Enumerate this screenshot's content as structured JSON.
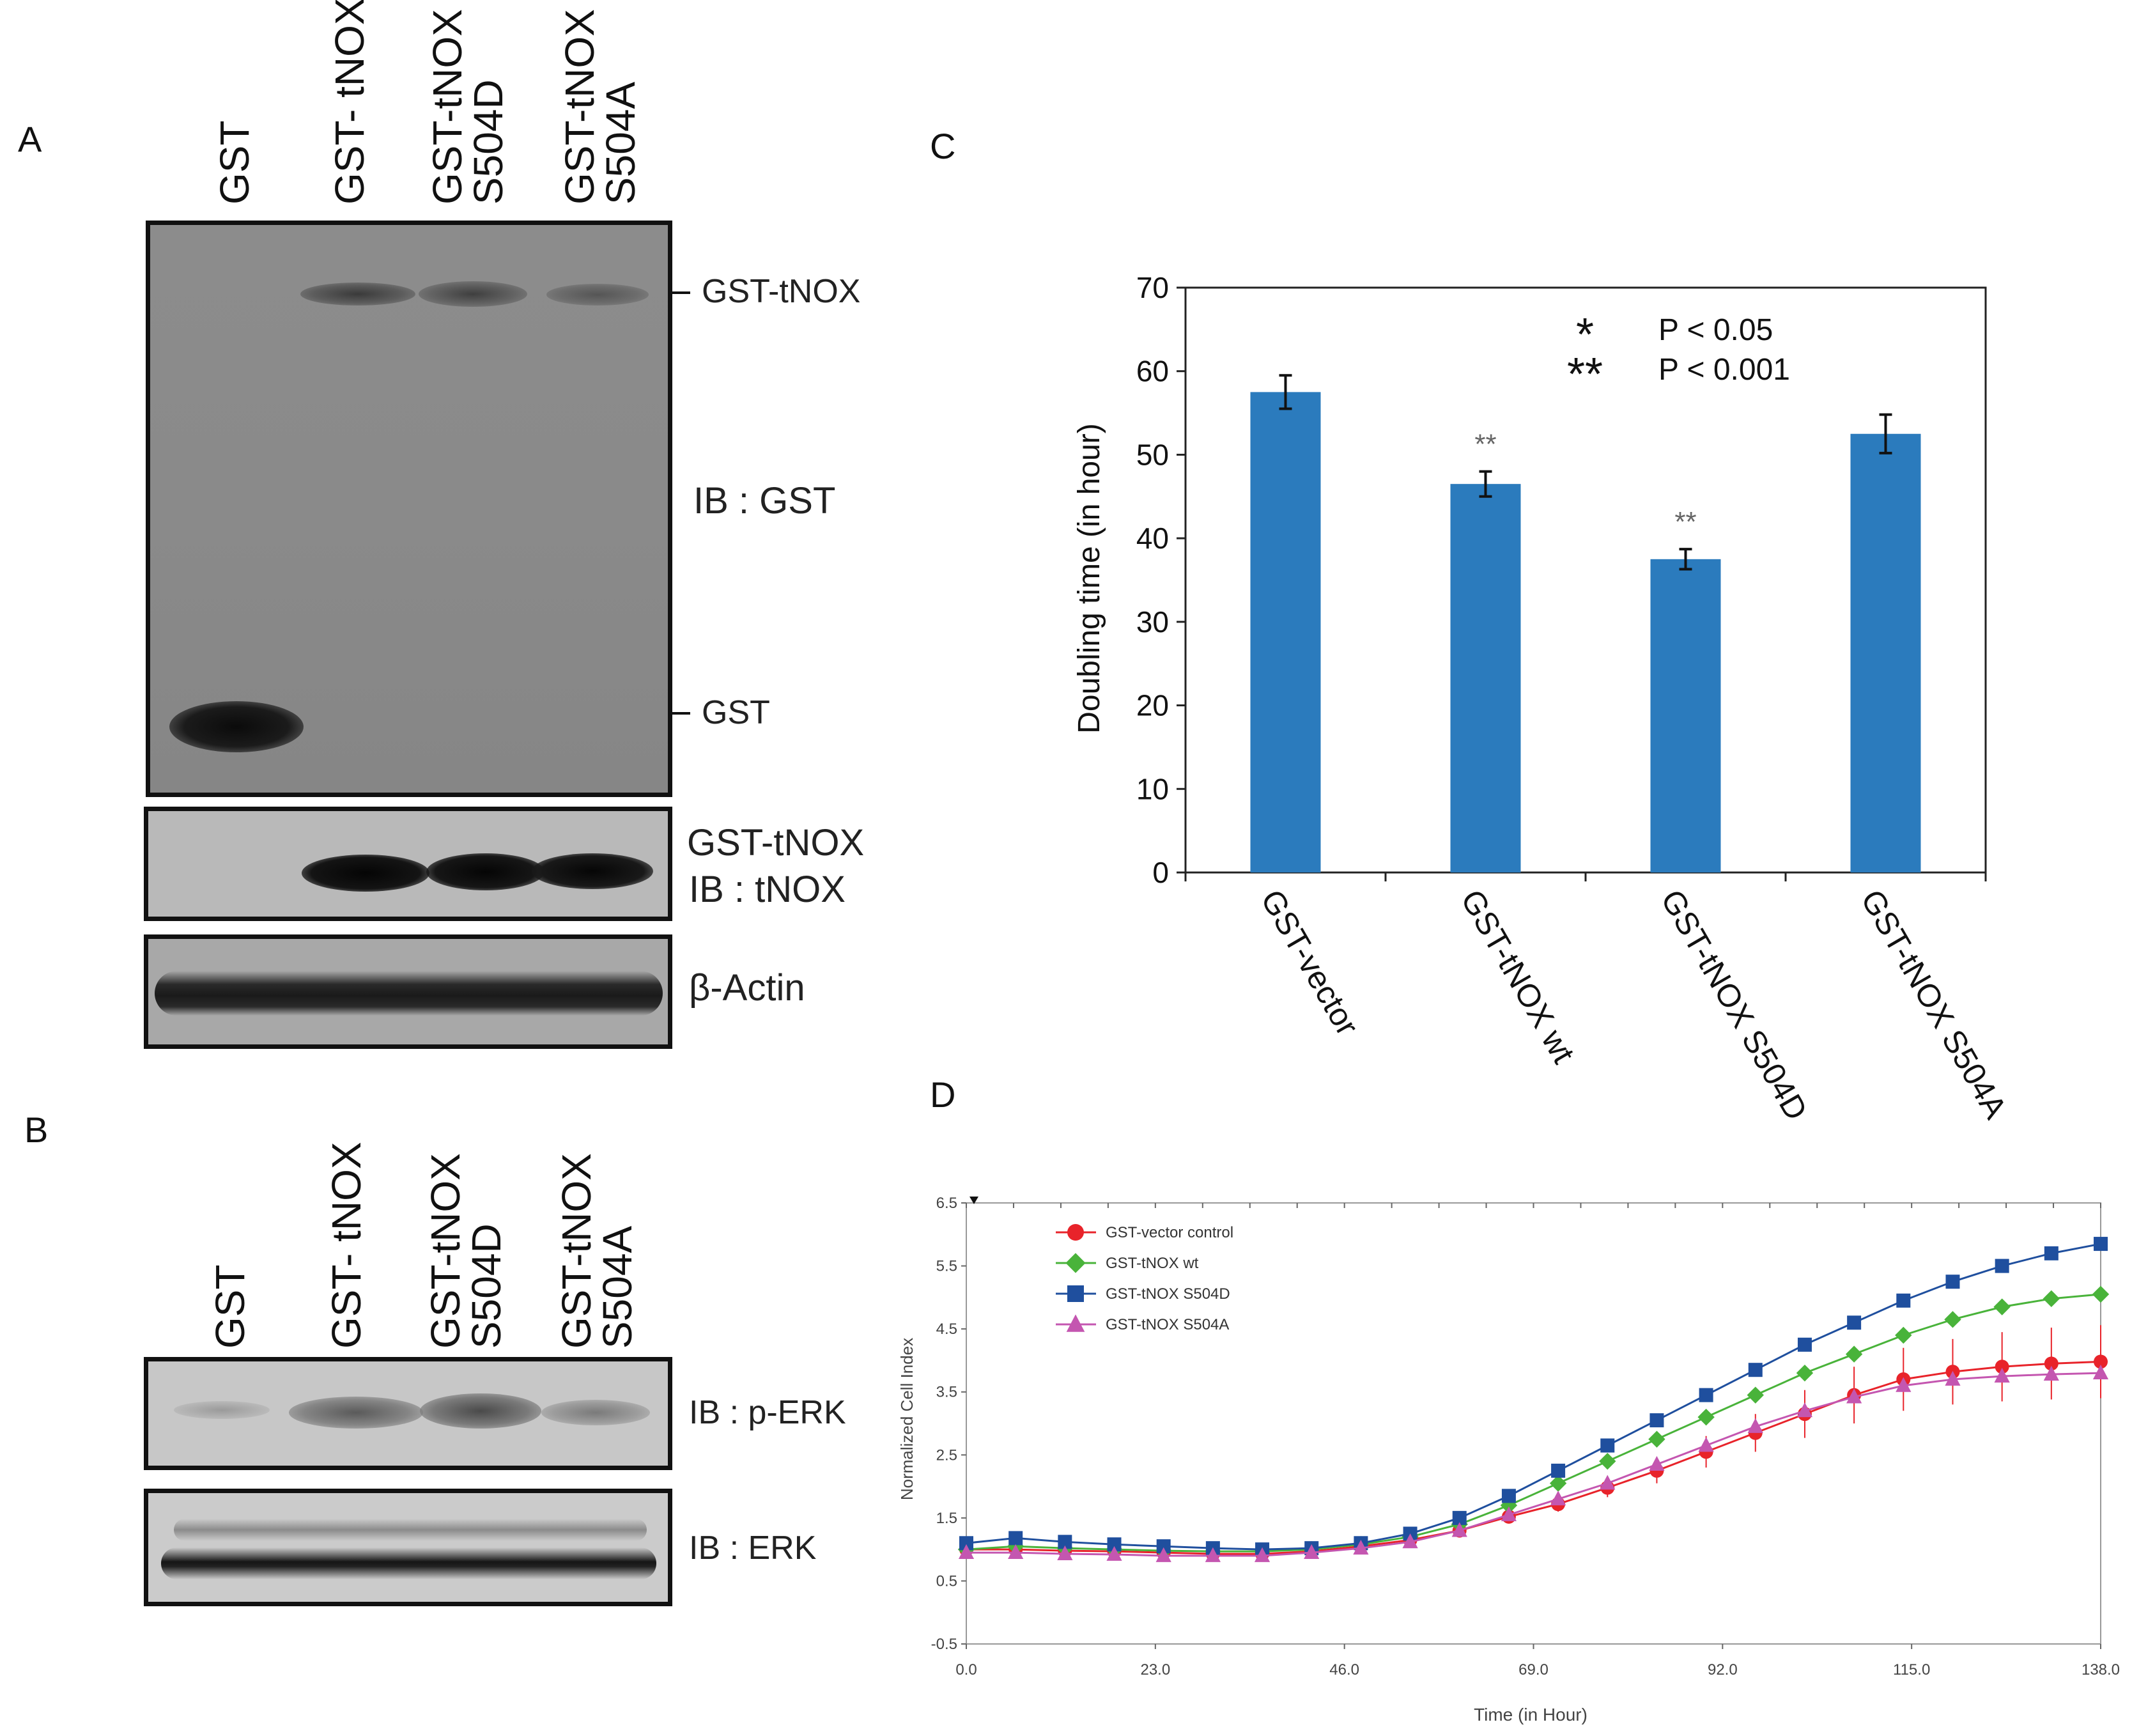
{
  "panels": {
    "a": "A",
    "b": "B",
    "c": "C",
    "d": "D"
  },
  "panel_a": {
    "lanes": [
      "GST",
      "GST- tNOX",
      "GST-tNOX\nS504D",
      "GST-tNOX\nS504A"
    ],
    "markers": {
      "top": "GST-tNOX",
      "bottom": "GST"
    },
    "main_ib": "IB : GST",
    "mid_label_1": "GST-tNOX",
    "mid_label_2": "IB : tNOX",
    "actin_label": "β-Actin"
  },
  "panel_b": {
    "lanes": [
      "GST",
      "GST- tNOX",
      "GST-tNOX\nS504D",
      "GST-tNOX\nS504A"
    ],
    "perk_label": "IB : p-ERK",
    "erk_label": "IB : ERK"
  },
  "chart_data": [
    {
      "type": "bar",
      "title": "",
      "categories": [
        "GST-vector",
        "GST-tNOX wt",
        "GST-tNOX S504D",
        "GST-tNOX S504A"
      ],
      "values": [
        57.5,
        46.5,
        37.5,
        52.5
      ],
      "errors": [
        2,
        1.5,
        1.2,
        2.3
      ],
      "significance": [
        "",
        "**",
        "**",
        ""
      ],
      "ylabel": "Doubling time (in hour)",
      "xlabel": "",
      "ylim": [
        0,
        70
      ],
      "yticks": [
        0,
        10,
        20,
        30,
        40,
        50,
        60,
        70
      ],
      "legend_items": [
        {
          "symbol": "*",
          "text": "P < 0.05"
        },
        {
          "symbol": "**",
          "text": "P < 0.001"
        }
      ],
      "color": "#2b7bbd"
    },
    {
      "type": "line",
      "title": "",
      "xlabel": "Time (in Hour)",
      "ylabel": "Normalized Cell Index",
      "xlim": [
        0,
        138
      ],
      "ylim": [
        -0.5,
        6.5
      ],
      "xticks": [
        "0.0",
        "23.0",
        "46.0",
        "69.0",
        "92.0",
        "115.0",
        "138.0"
      ],
      "yticks": [
        "-0.5",
        "0.5",
        "1.5",
        "2.5",
        "3.5",
        "4.5",
        "5.5",
        "6.5"
      ],
      "x": [
        0,
        6,
        12,
        18,
        24,
        30,
        36,
        42,
        48,
        54,
        60,
        66,
        72,
        78,
        84,
        90,
        96,
        102,
        108,
        114,
        120,
        126,
        132,
        138
      ],
      "series": [
        {
          "name": "GST-vector control",
          "color": "#e8232a",
          "marker": "circle",
          "values": [
            1.0,
            1.0,
            0.98,
            0.97,
            0.95,
            0.93,
            0.93,
            0.97,
            1.05,
            1.15,
            1.3,
            1.52,
            1.72,
            1.98,
            2.25,
            2.55,
            2.85,
            3.15,
            3.45,
            3.7,
            3.82,
            3.9,
            3.95,
            3.98
          ],
          "errors": [
            0.05,
            0.05,
            0.05,
            0.05,
            0.05,
            0.05,
            0.05,
            0.05,
            0.06,
            0.07,
            0.08,
            0.1,
            0.12,
            0.15,
            0.2,
            0.25,
            0.3,
            0.38,
            0.45,
            0.5,
            0.52,
            0.55,
            0.57,
            0.58
          ]
        },
        {
          "name": "GST-tNOX wt",
          "color": "#49b33a",
          "marker": "diamond",
          "values": [
            1.0,
            1.05,
            1.02,
            1.0,
            0.98,
            0.97,
            0.97,
            1.0,
            1.08,
            1.2,
            1.4,
            1.7,
            2.05,
            2.4,
            2.75,
            3.1,
            3.45,
            3.8,
            4.1,
            4.4,
            4.65,
            4.85,
            4.98,
            5.05
          ]
        },
        {
          "name": "GST-tNOX S504D",
          "color": "#1f4f9e",
          "marker": "square",
          "values": [
            1.1,
            1.18,
            1.12,
            1.08,
            1.05,
            1.02,
            1.0,
            1.02,
            1.1,
            1.25,
            1.5,
            1.85,
            2.25,
            2.65,
            3.05,
            3.45,
            3.85,
            4.25,
            4.6,
            4.95,
            5.25,
            5.5,
            5.7,
            5.85
          ]
        },
        {
          "name": "GST-tNOX S504A",
          "color": "#c456b0",
          "marker": "triangle",
          "values": [
            0.95,
            0.95,
            0.93,
            0.92,
            0.9,
            0.9,
            0.9,
            0.95,
            1.02,
            1.12,
            1.3,
            1.55,
            1.8,
            2.05,
            2.35,
            2.65,
            2.95,
            3.2,
            3.42,
            3.6,
            3.7,
            3.75,
            3.78,
            3.8
          ]
        }
      ]
    }
  ]
}
